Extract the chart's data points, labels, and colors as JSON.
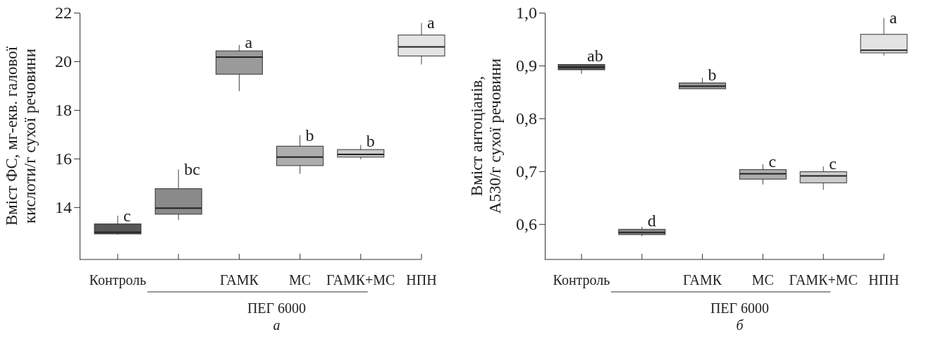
{
  "chart_data": [
    {
      "type": "box",
      "title": "а",
      "ylabel": "Вміст ФС, мг-екв. галової\nкислоти/г сухої речовини",
      "categories": [
        "Контроль",
        null,
        "ГАМК",
        "МС",
        "ГАМК+МС",
        "НПН"
      ],
      "boxes": [
        {
          "low": 12.87,
          "q1": 12.9,
          "median": 12.97,
          "q3": 13.31,
          "high": 13.65
        },
        {
          "low": 13.47,
          "q1": 13.71,
          "median": 13.96,
          "q3": 14.76,
          "high": 15.55
        },
        {
          "low": 18.77,
          "q1": 19.47,
          "median": 20.17,
          "q3": 20.43,
          "high": 20.67
        },
        {
          "low": 15.37,
          "q1": 15.71,
          "median": 16.06,
          "q3": 16.51,
          "high": 16.96
        },
        {
          "low": 15.97,
          "q1": 16.06,
          "median": 16.17,
          "q3": 16.37,
          "high": 16.56
        },
        {
          "low": 19.87,
          "q1": 20.22,
          "median": 20.59,
          "q3": 21.08,
          "high": 21.58
        }
      ],
      "colors": [
        "#575757",
        "#8a8a8a",
        "#9a9a9a",
        "#adadad",
        "#cccccc",
        "#e4e4e4"
      ],
      "value_labels": [
        "c",
        "bc",
        "a",
        "b",
        "b",
        "a"
      ],
      "annotations": [
        "ПЕГ 6000"
      ],
      "ylim": [
        11.85,
        22
      ],
      "yticks": [
        14,
        16,
        18,
        20,
        22
      ],
      "grid": false
    },
    {
      "type": "box",
      "title": "б",
      "ylabel": "Вміст антоціанів,\nA530/г сухої речовини",
      "categories": [
        "Контроль",
        null,
        "ГАМК",
        "МС",
        "ГАМК+МС",
        "НПН"
      ],
      "boxes": [
        {
          "low": 0.884,
          "q1": 0.892,
          "median": 0.897,
          "q3": 0.902,
          "high": 0.903
        },
        {
          "low": 0.577,
          "q1": 0.58,
          "median": 0.584,
          "q3": 0.59,
          "high": 0.595
        },
        {
          "low": 0.856,
          "q1": 0.856,
          "median": 0.861,
          "q3": 0.867,
          "high": 0.877
        },
        {
          "low": 0.675,
          "q1": 0.685,
          "median": 0.695,
          "q3": 0.703,
          "high": 0.713
        },
        {
          "low": 0.665,
          "q1": 0.678,
          "median": 0.691,
          "q3": 0.699,
          "high": 0.709
        },
        {
          "low": 0.919,
          "q1": 0.924,
          "median": 0.929,
          "q3": 0.959,
          "high": 0.99
        }
      ],
      "colors": [
        "#575757",
        "#8a8a8a",
        "#9a9a9a",
        "#adadad",
        "#cccccc",
        "#e4e4e4"
      ],
      "value_labels": [
        "ab",
        "d",
        "b",
        "c",
        "c",
        "a"
      ],
      "annotations": [
        "ПЕГ 6000"
      ],
      "ylim": [
        0.533,
        1.0
      ],
      "yticks": [
        {
          "value": 0.6,
          "label": "0,6"
        },
        {
          "value": 0.7,
          "label": "0,7"
        },
        {
          "value": 0.8,
          "label": "0,8"
        },
        {
          "value": 0.9,
          "label": "0,9"
        },
        {
          "value": 1.0,
          "label": "1,0"
        }
      ],
      "grid": false
    }
  ]
}
